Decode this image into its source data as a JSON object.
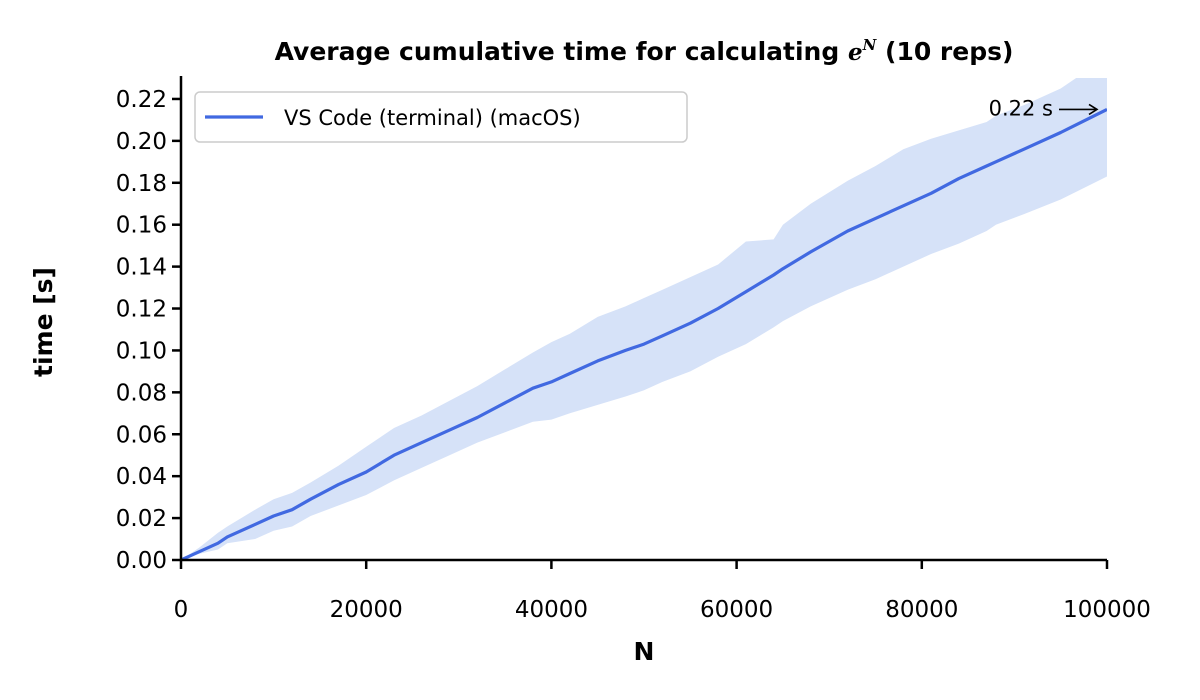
{
  "chart_data": {
    "type": "line",
    "title_prefix": "Average cumulative time for calculating ",
    "title_base": "e",
    "title_sup": "N",
    "title_suffix": " (10 reps)",
    "xlabel": "N",
    "ylabel": "time [s]",
    "xlim": [
      0,
      100000
    ],
    "ylim": [
      0,
      0.23
    ],
    "xticks": [
      0,
      20000,
      40000,
      60000,
      80000,
      100000
    ],
    "xtick_labels": [
      "0",
      "20000",
      "40000",
      "60000",
      "80000",
      "100000"
    ],
    "yticks": [
      0,
      0.02,
      0.04,
      0.06,
      0.08,
      0.1,
      0.12,
      0.14,
      0.16,
      0.18,
      0.2,
      0.22
    ],
    "ytick_labels": [
      "0.00",
      "0.02",
      "0.04",
      "0.06",
      "0.08",
      "0.10",
      "0.12",
      "0.14",
      "0.16",
      "0.18",
      "0.20",
      "0.22"
    ],
    "grid": false,
    "legend_position": "top-left",
    "series": [
      {
        "name": "VS Code (terminal) (macOS)",
        "color": "#4169e1",
        "band_color": "#d6e2f8",
        "x": [
          0,
          2000,
          4000,
          5000,
          8000,
          10000,
          12000,
          14000,
          17000,
          20000,
          23000,
          26000,
          29000,
          32000,
          35000,
          38000,
          40000,
          42000,
          45000,
          48000,
          50000,
          52000,
          55000,
          58000,
          61000,
          64000,
          65000,
          68000,
          72000,
          75000,
          78000,
          81000,
          84000,
          87000,
          88000,
          91000,
          95000,
          100000
        ],
        "y": [
          0,
          0.004,
          0.008,
          0.011,
          0.017,
          0.021,
          0.024,
          0.029,
          0.036,
          0.042,
          0.05,
          0.056,
          0.062,
          0.068,
          0.075,
          0.082,
          0.085,
          0.089,
          0.095,
          0.1,
          0.103,
          0.107,
          0.113,
          0.12,
          0.128,
          0.136,
          0.139,
          0.147,
          0.157,
          0.163,
          0.169,
          0.175,
          0.182,
          0.188,
          0.19,
          0.196,
          0.204,
          0.215
        ],
        "lower": [
          0,
          0.003,
          0.005,
          0.008,
          0.01,
          0.014,
          0.016,
          0.021,
          0.026,
          0.031,
          0.038,
          0.044,
          0.05,
          0.056,
          0.061,
          0.066,
          0.067,
          0.07,
          0.074,
          0.078,
          0.081,
          0.085,
          0.09,
          0.097,
          0.103,
          0.111,
          0.114,
          0.121,
          0.129,
          0.134,
          0.14,
          0.146,
          0.151,
          0.157,
          0.16,
          0.165,
          0.172,
          0.183
        ],
        "upper": [
          0,
          0.006,
          0.013,
          0.016,
          0.024,
          0.029,
          0.032,
          0.037,
          0.045,
          0.054,
          0.063,
          0.069,
          0.076,
          0.083,
          0.091,
          0.099,
          0.104,
          0.108,
          0.116,
          0.121,
          0.125,
          0.129,
          0.135,
          0.141,
          0.152,
          0.153,
          0.16,
          0.17,
          0.181,
          0.188,
          0.196,
          0.201,
          0.205,
          0.209,
          0.212,
          0.217,
          0.225,
          0.24
        ]
      }
    ],
    "annotation": {
      "text": "0.22 s",
      "x": 100000,
      "y": 0.215
    }
  }
}
